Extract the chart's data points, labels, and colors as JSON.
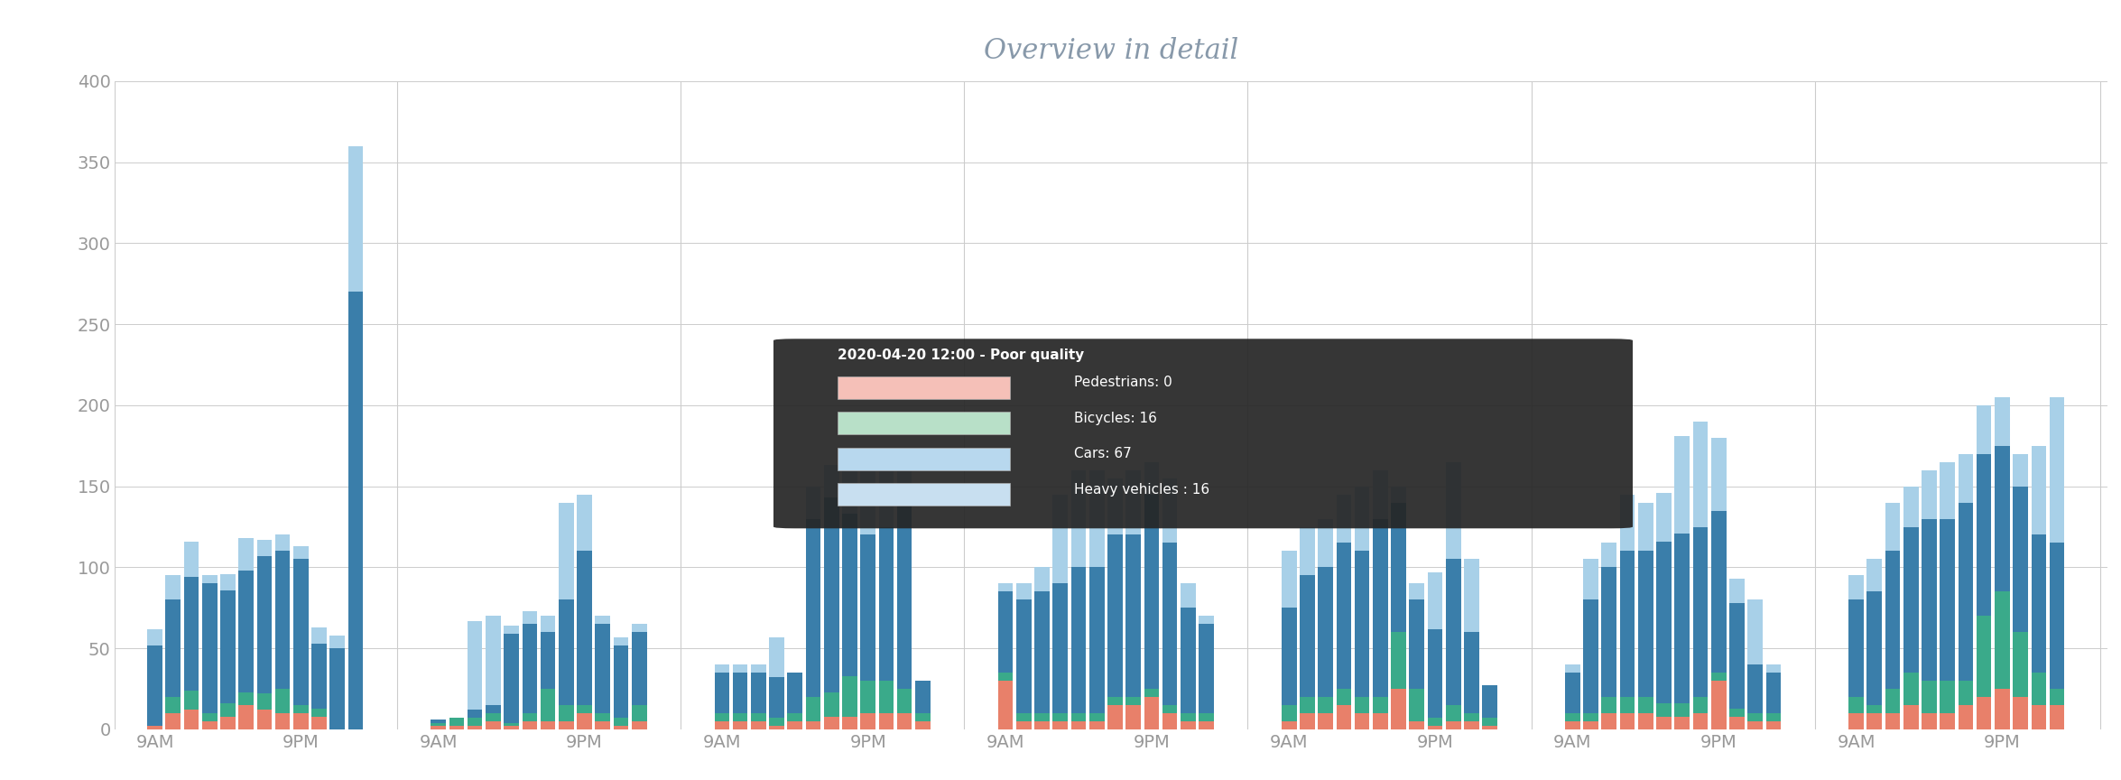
{
  "title": "Overview in detail",
  "title_color": "#8899aa",
  "bg_color": "#ffffff",
  "grid_color": "#cccccc",
  "colors": {
    "pedestrians": "#e8806a",
    "bicycles": "#3aaa8a",
    "cars": "#3a7eaa",
    "heavy": "#a8d0e8"
  },
  "tooltip_colors": {
    "pedestrians": "#f5c0b8",
    "bicycles": "#b8e0c8",
    "cars": "#b8d8ee",
    "heavy": "#c8dff0"
  },
  "groups": [
    {
      "bars": [
        {
          "pedestrians": 2,
          "bicycles": 0,
          "cars": 50,
          "heavy": 10
        },
        {
          "pedestrians": 10,
          "bicycles": 10,
          "cars": 60,
          "heavy": 15
        },
        {
          "pedestrians": 12,
          "bicycles": 12,
          "cars": 70,
          "heavy": 22
        },
        {
          "pedestrians": 5,
          "bicycles": 5,
          "cars": 80,
          "heavy": 5
        },
        {
          "pedestrians": 8,
          "bicycles": 8,
          "cars": 70,
          "heavy": 10
        },
        {
          "pedestrians": 15,
          "bicycles": 8,
          "cars": 75,
          "heavy": 20
        },
        {
          "pedestrians": 12,
          "bicycles": 10,
          "cars": 85,
          "heavy": 10
        },
        {
          "pedestrians": 10,
          "bicycles": 15,
          "cars": 85,
          "heavy": 10
        },
        {
          "pedestrians": 10,
          "bicycles": 5,
          "cars": 90,
          "heavy": 8
        },
        {
          "pedestrians": 8,
          "bicycles": 5,
          "cars": 40,
          "heavy": 10
        },
        {
          "pedestrians": 0,
          "bicycles": 0,
          "cars": 50,
          "heavy": 8
        },
        {
          "pedestrians": 0,
          "bicycles": 0,
          "cars": 270,
          "heavy": 90
        }
      ]
    },
    {
      "bars": [
        {
          "pedestrians": 2,
          "bicycles": 2,
          "cars": 2,
          "heavy": 0
        },
        {
          "pedestrians": 2,
          "bicycles": 5,
          "cars": 0,
          "heavy": 0
        },
        {
          "pedestrians": 2,
          "bicycles": 5,
          "cars": 5,
          "heavy": 55
        },
        {
          "pedestrians": 5,
          "bicycles": 5,
          "cars": 5,
          "heavy": 55
        },
        {
          "pedestrians": 2,
          "bicycles": 2,
          "cars": 55,
          "heavy": 5
        },
        {
          "pedestrians": 5,
          "bicycles": 5,
          "cars": 55,
          "heavy": 8
        },
        {
          "pedestrians": 5,
          "bicycles": 20,
          "cars": 35,
          "heavy": 10
        },
        {
          "pedestrians": 5,
          "bicycles": 10,
          "cars": 65,
          "heavy": 60
        },
        {
          "pedestrians": 10,
          "bicycles": 5,
          "cars": 95,
          "heavy": 35
        },
        {
          "pedestrians": 5,
          "bicycles": 5,
          "cars": 55,
          "heavy": 5
        },
        {
          "pedestrians": 2,
          "bicycles": 5,
          "cars": 45,
          "heavy": 5
        },
        {
          "pedestrians": 5,
          "bicycles": 10,
          "cars": 45,
          "heavy": 5
        }
      ]
    },
    {
      "bars": [
        {
          "pedestrians": 5,
          "bicycles": 5,
          "cars": 25,
          "heavy": 5
        },
        {
          "pedestrians": 5,
          "bicycles": 5,
          "cars": 25,
          "heavy": 5
        },
        {
          "pedestrians": 5,
          "bicycles": 5,
          "cars": 25,
          "heavy": 5
        },
        {
          "pedestrians": 2,
          "bicycles": 5,
          "cars": 25,
          "heavy": 25
        },
        {
          "pedestrians": 5,
          "bicycles": 5,
          "cars": 25,
          "heavy": 0
        },
        {
          "pedestrians": 5,
          "bicycles": 15,
          "cars": 110,
          "heavy": 20
        },
        {
          "pedestrians": 8,
          "bicycles": 15,
          "cars": 120,
          "heavy": 20
        },
        {
          "pedestrians": 8,
          "bicycles": 25,
          "cars": 100,
          "heavy": 30
        },
        {
          "pedestrians": 10,
          "bicycles": 20,
          "cars": 90,
          "heavy": 40
        },
        {
          "pedestrians": 10,
          "bicycles": 20,
          "cars": 95,
          "heavy": 35
        },
        {
          "pedestrians": 10,
          "bicycles": 15,
          "cars": 120,
          "heavy": 20
        },
        {
          "pedestrians": 5,
          "bicycles": 5,
          "cars": 20,
          "heavy": 0
        }
      ]
    },
    {
      "bars": [
        {
          "pedestrians": 30,
          "bicycles": 5,
          "cars": 50,
          "heavy": 5
        },
        {
          "pedestrians": 5,
          "bicycles": 5,
          "cars": 70,
          "heavy": 10
        },
        {
          "pedestrians": 5,
          "bicycles": 5,
          "cars": 75,
          "heavy": 15
        },
        {
          "pedestrians": 5,
          "bicycles": 5,
          "cars": 80,
          "heavy": 55
        },
        {
          "pedestrians": 5,
          "bicycles": 5,
          "cars": 90,
          "heavy": 60
        },
        {
          "pedestrians": 5,
          "bicycles": 5,
          "cars": 90,
          "heavy": 60
        },
        {
          "pedestrians": 15,
          "bicycles": 5,
          "cars": 100,
          "heavy": 35
        },
        {
          "pedestrians": 15,
          "bicycles": 5,
          "cars": 100,
          "heavy": 40
        },
        {
          "pedestrians": 20,
          "bicycles": 5,
          "cars": 120,
          "heavy": 20
        },
        {
          "pedestrians": 10,
          "bicycles": 5,
          "cars": 100,
          "heavy": 40
        },
        {
          "pedestrians": 5,
          "bicycles": 5,
          "cars": 65,
          "heavy": 15
        },
        {
          "pedestrians": 5,
          "bicycles": 5,
          "cars": 55,
          "heavy": 5
        }
      ]
    },
    {
      "bars": [
        {
          "pedestrians": 5,
          "bicycles": 10,
          "cars": 60,
          "heavy": 35
        },
        {
          "pedestrians": 10,
          "bicycles": 10,
          "cars": 75,
          "heavy": 30
        },
        {
          "pedestrians": 10,
          "bicycles": 10,
          "cars": 80,
          "heavy": 30
        },
        {
          "pedestrians": 15,
          "bicycles": 10,
          "cars": 90,
          "heavy": 30
        },
        {
          "pedestrians": 10,
          "bicycles": 10,
          "cars": 90,
          "heavy": 40
        },
        {
          "pedestrians": 10,
          "bicycles": 10,
          "cars": 110,
          "heavy": 30
        },
        {
          "pedestrians": 25,
          "bicycles": 35,
          "cars": 80,
          "heavy": 10
        },
        {
          "pedestrians": 5,
          "bicycles": 20,
          "cars": 55,
          "heavy": 10
        },
        {
          "pedestrians": 2,
          "bicycles": 5,
          "cars": 55,
          "heavy": 35
        },
        {
          "pedestrians": 5,
          "bicycles": 10,
          "cars": 90,
          "heavy": 60
        },
        {
          "pedestrians": 5,
          "bicycles": 5,
          "cars": 50,
          "heavy": 45
        },
        {
          "pedestrians": 2,
          "bicycles": 5,
          "cars": 20,
          "heavy": 0
        }
      ]
    },
    {
      "bars": [
        {
          "pedestrians": 5,
          "bicycles": 5,
          "cars": 25,
          "heavy": 5
        },
        {
          "pedestrians": 5,
          "bicycles": 5,
          "cars": 70,
          "heavy": 25
        },
        {
          "pedestrians": 10,
          "bicycles": 10,
          "cars": 80,
          "heavy": 15
        },
        {
          "pedestrians": 10,
          "bicycles": 10,
          "cars": 90,
          "heavy": 35
        },
        {
          "pedestrians": 10,
          "bicycles": 10,
          "cars": 90,
          "heavy": 30
        },
        {
          "pedestrians": 8,
          "bicycles": 8,
          "cars": 100,
          "heavy": 30
        },
        {
          "pedestrians": 8,
          "bicycles": 8,
          "cars": 105,
          "heavy": 60
        },
        {
          "pedestrians": 10,
          "bicycles": 10,
          "cars": 105,
          "heavy": 65
        },
        {
          "pedestrians": 30,
          "bicycles": 5,
          "cars": 100,
          "heavy": 45
        },
        {
          "pedestrians": 8,
          "bicycles": 5,
          "cars": 65,
          "heavy": 15
        },
        {
          "pedestrians": 5,
          "bicycles": 5,
          "cars": 30,
          "heavy": 40
        },
        {
          "pedestrians": 5,
          "bicycles": 5,
          "cars": 25,
          "heavy": 5
        }
      ]
    },
    {
      "bars": [
        {
          "pedestrians": 10,
          "bicycles": 10,
          "cars": 60,
          "heavy": 15
        },
        {
          "pedestrians": 10,
          "bicycles": 5,
          "cars": 70,
          "heavy": 20
        },
        {
          "pedestrians": 10,
          "bicycles": 15,
          "cars": 85,
          "heavy": 30
        },
        {
          "pedestrians": 15,
          "bicycles": 20,
          "cars": 90,
          "heavy": 25
        },
        {
          "pedestrians": 10,
          "bicycles": 20,
          "cars": 100,
          "heavy": 30
        },
        {
          "pedestrians": 10,
          "bicycles": 20,
          "cars": 100,
          "heavy": 35
        },
        {
          "pedestrians": 15,
          "bicycles": 15,
          "cars": 110,
          "heavy": 30
        },
        {
          "pedestrians": 20,
          "bicycles": 50,
          "cars": 100,
          "heavy": 30
        },
        {
          "pedestrians": 25,
          "bicycles": 60,
          "cars": 90,
          "heavy": 30
        },
        {
          "pedestrians": 20,
          "bicycles": 40,
          "cars": 90,
          "heavy": 20
        },
        {
          "pedestrians": 15,
          "bicycles": 20,
          "cars": 85,
          "heavy": 55
        },
        {
          "pedestrians": 15,
          "bicycles": 10,
          "cars": 90,
          "heavy": 90
        }
      ]
    }
  ],
  "tooltip": {
    "title": "2020-04-20 12:00 - Poor quality",
    "pedestrians": 0,
    "bicycles": 16,
    "cars": 67,
    "heavy_vehicles": 16
  },
  "ylim": [
    0,
    400
  ],
  "yticks": [
    0,
    50,
    100,
    150,
    200,
    250,
    300,
    350,
    400
  ]
}
